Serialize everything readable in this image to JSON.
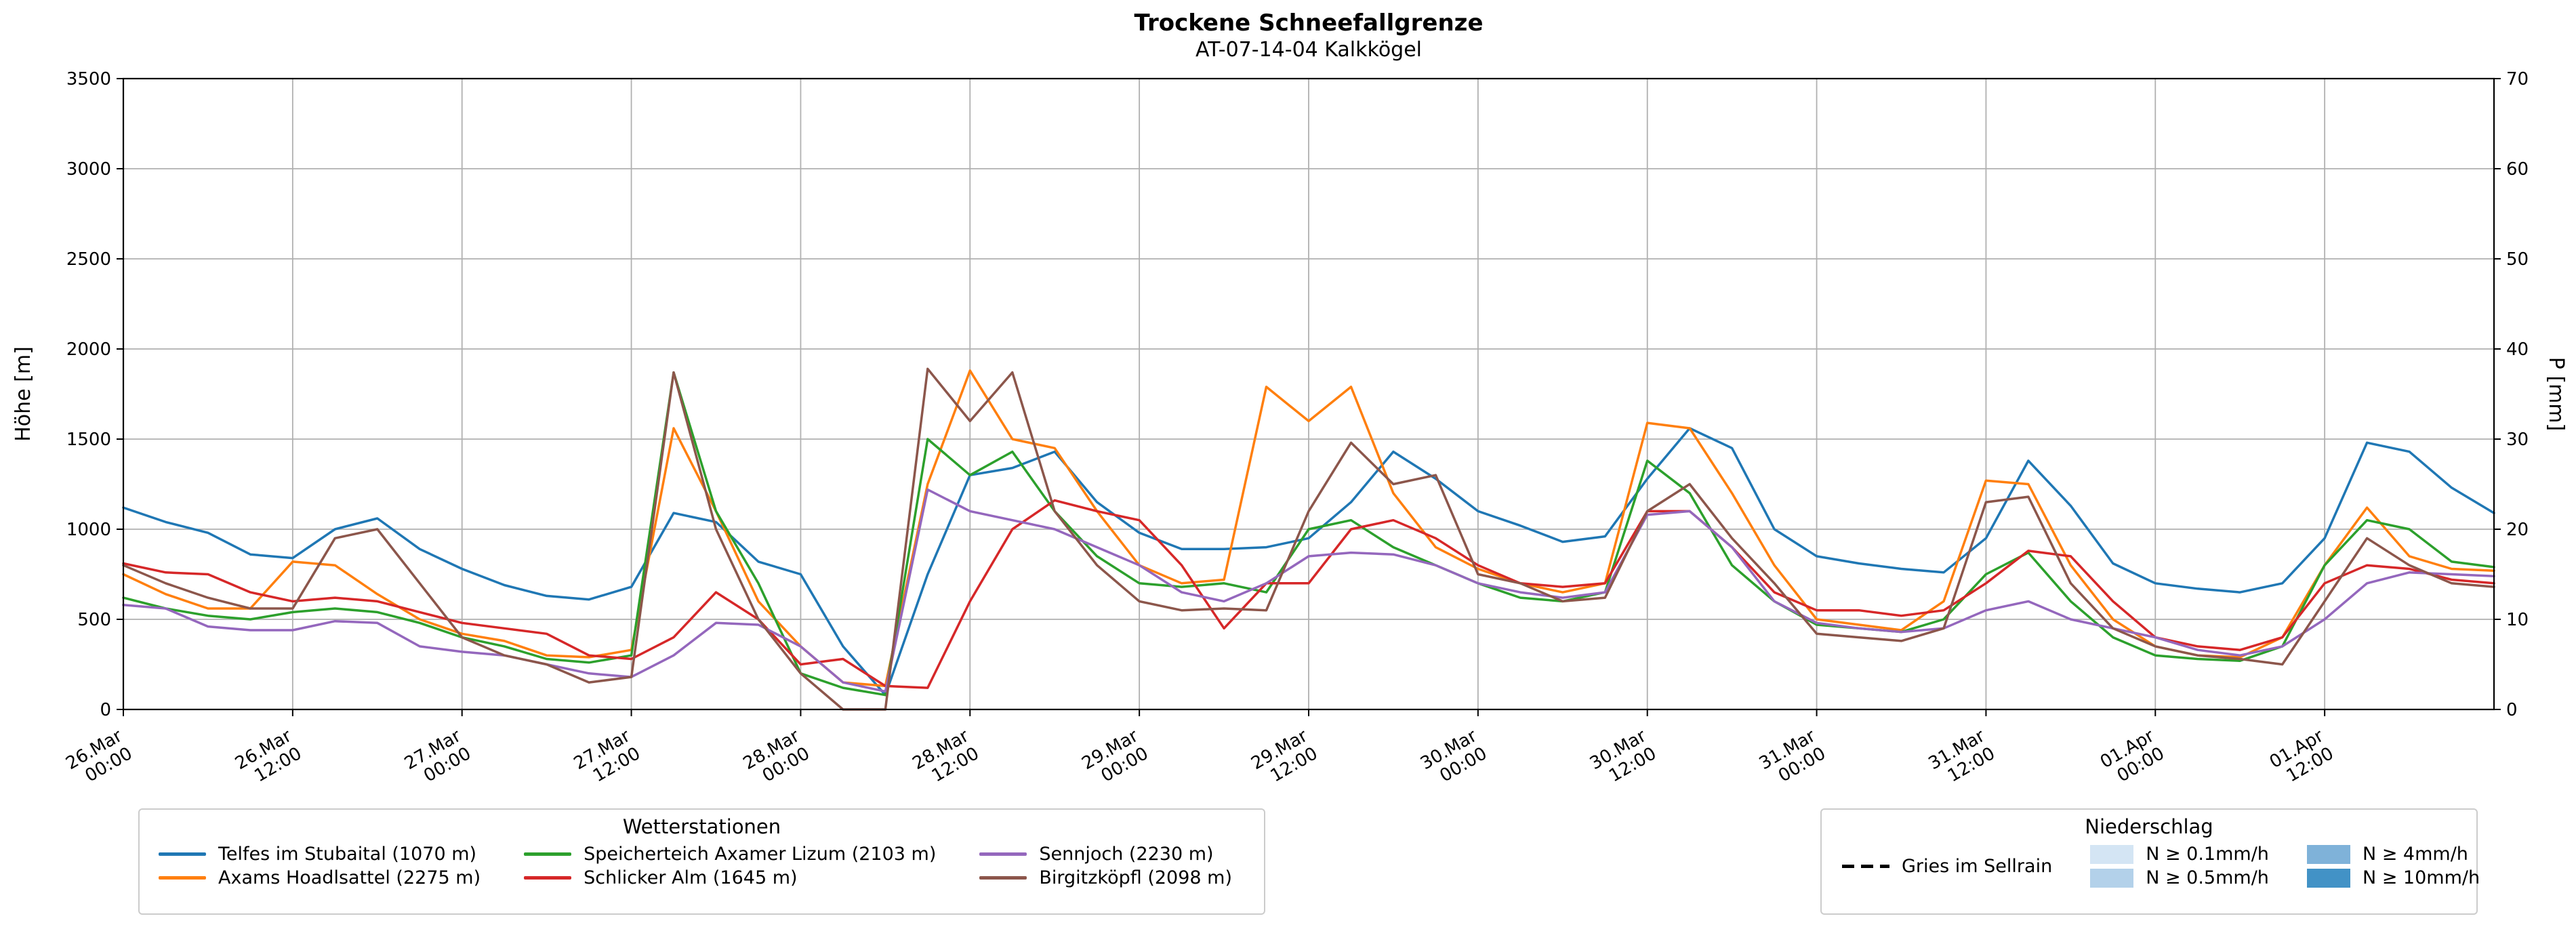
{
  "chart_data": {
    "type": "line",
    "title": "Trockene Schneefallgrenze",
    "subtitle": "AT-07-14-04 Kalkkögel",
    "ylabel_left": "Höhe [m]",
    "ylabel_right": "P [mm]",
    "ylim_left": [
      0,
      3500
    ],
    "ylim_right": [
      0,
      70
    ],
    "yticks_left": [
      0,
      500,
      1000,
      1500,
      2000,
      2500,
      3000,
      3500
    ],
    "yticks_right": [
      0,
      10,
      20,
      30,
      40,
      50,
      60,
      70
    ],
    "grid": true,
    "legend_position": "below",
    "xtick_rotation": 30,
    "x_hours": [
      0,
      3,
      6,
      9,
      12,
      15,
      18,
      21,
      24,
      27,
      30,
      33,
      36,
      39,
      42,
      45,
      48,
      51,
      54,
      57,
      60,
      63,
      66,
      69,
      72,
      75,
      78,
      81,
      84,
      87,
      90,
      93,
      96,
      99,
      102,
      105,
      108,
      111,
      114,
      117,
      120,
      123,
      126,
      129,
      132,
      135,
      138,
      141,
      144,
      147,
      150,
      153,
      156,
      159,
      162,
      165,
      168
    ],
    "x_ticks": [
      {
        "hour": 0,
        "date": "26.Mar",
        "time": "00:00"
      },
      {
        "hour": 12,
        "date": "26.Mar",
        "time": "12:00"
      },
      {
        "hour": 24,
        "date": "27.Mar",
        "time": "00:00"
      },
      {
        "hour": 36,
        "date": "27.Mar",
        "time": "12:00"
      },
      {
        "hour": 48,
        "date": "28.Mar",
        "time": "00:00"
      },
      {
        "hour": 60,
        "date": "28.Mar",
        "time": "12:00"
      },
      {
        "hour": 72,
        "date": "29.Mar",
        "time": "00:00"
      },
      {
        "hour": 84,
        "date": "29.Mar",
        "time": "12:00"
      },
      {
        "hour": 96,
        "date": "30.Mar",
        "time": "00:00"
      },
      {
        "hour": 108,
        "date": "30.Mar",
        "time": "12:00"
      },
      {
        "hour": 120,
        "date": "31.Mar",
        "time": "00:00"
      },
      {
        "hour": 132,
        "date": "31.Mar",
        "time": "12:00"
      },
      {
        "hour": 144,
        "date": "01.Apr",
        "time": "00:00"
      },
      {
        "hour": 156,
        "date": "01.Apr",
        "time": "12:00"
      }
    ],
    "series": [
      {
        "name": "Telfes im Stubaital (1070 m)",
        "color": "#1f77b4",
        "values": [
          1120,
          1040,
          980,
          860,
          840,
          1000,
          1060,
          890,
          780,
          690,
          630,
          610,
          680,
          1090,
          1040,
          820,
          750,
          350,
          80,
          750,
          1300,
          1340,
          1430,
          1150,
          980,
          890,
          890,
          900,
          950,
          1150,
          1430,
          1280,
          1100,
          1020,
          930,
          960,
          1280,
          1560,
          1450,
          1000,
          850,
          810,
          780,
          760,
          950,
          1380,
          1130,
          810,
          700,
          670,
          650,
          700,
          950,
          1480,
          1430,
          1230,
          1090
        ]
      },
      {
        "name": "Axams Hoadlsattel (2275 m)",
        "color": "#ff7f0e",
        "values": [
          750,
          640,
          560,
          560,
          820,
          800,
          640,
          500,
          420,
          380,
          300,
          290,
          330,
          1560,
          1100,
          600,
          350,
          150,
          130,
          1250,
          1880,
          1500,
          1450,
          1100,
          800,
          700,
          720,
          1790,
          1600,
          1790,
          1200,
          900,
          780,
          700,
          650,
          700,
          1590,
          1560,
          1200,
          800,
          500,
          470,
          440,
          600,
          1270,
          1250,
          800,
          500,
          350,
          300,
          290,
          400,
          800,
          1120,
          850,
          780,
          770
        ]
      },
      {
        "name": "Speicherteich Axamer Lizum (2103 m)",
        "color": "#2ca02c",
        "values": [
          620,
          560,
          520,
          500,
          540,
          560,
          540,
          480,
          400,
          350,
          280,
          260,
          300,
          1870,
          1100,
          700,
          200,
          120,
          80,
          1500,
          1300,
          1430,
          1100,
          850,
          700,
          680,
          700,
          650,
          1000,
          1050,
          900,
          800,
          700,
          620,
          600,
          650,
          1380,
          1200,
          800,
          600,
          470,
          450,
          430,
          500,
          750,
          870,
          600,
          400,
          300,
          280,
          270,
          350,
          800,
          1050,
          1000,
          820,
          790
        ]
      },
      {
        "name": "Schlicker Alm (1645 m)",
        "color": "#d62728",
        "values": [
          810,
          760,
          750,
          650,
          600,
          620,
          600,
          540,
          480,
          450,
          420,
          300,
          280,
          400,
          650,
          500,
          250,
          280,
          130,
          120,
          600,
          1000,
          1160,
          1100,
          1050,
          800,
          450,
          700,
          700,
          1000,
          1050,
          950,
          800,
          700,
          680,
          700,
          1100,
          1100,
          900,
          650,
          550,
          550,
          520,
          550,
          700,
          880,
          850,
          600,
          400,
          350,
          330,
          400,
          700,
          800,
          780,
          720,
          700
        ]
      },
      {
        "name": "Sennjoch (2230 m)",
        "color": "#9467bd",
        "values": [
          580,
          560,
          460,
          440,
          440,
          490,
          480,
          350,
          320,
          300,
          250,
          200,
          180,
          300,
          480,
          470,
          350,
          150,
          100,
          1220,
          1100,
          1050,
          1000,
          900,
          800,
          650,
          600,
          700,
          850,
          870,
          860,
          800,
          700,
          650,
          620,
          650,
          1080,
          1100,
          900,
          600,
          480,
          450,
          430,
          450,
          550,
          600,
          500,
          450,
          400,
          330,
          300,
          350,
          500,
          700,
          760,
          750,
          740
        ]
      },
      {
        "name": "Birgitzköpfl (2098 m)",
        "color": "#8c564b",
        "values": [
          800,
          700,
          620,
          560,
          560,
          950,
          1000,
          700,
          400,
          300,
          250,
          150,
          180,
          1870,
          1000,
          500,
          200,
          0,
          0,
          1890,
          1600,
          1870,
          1100,
          800,
          600,
          550,
          560,
          550,
          1100,
          1480,
          1250,
          1300,
          750,
          700,
          600,
          620,
          1100,
          1250,
          950,
          700,
          420,
          400,
          380,
          450,
          1150,
          1180,
          700,
          450,
          350,
          300,
          280,
          250,
          600,
          950,
          800,
          700,
          680
        ]
      }
    ],
    "legend_stations": {
      "title": "Wetterstationen"
    },
    "legend_precip": {
      "title": "Niederschlag",
      "line_item": {
        "label": "Gries im Sellrain",
        "color": "#000000",
        "style": "dashed"
      },
      "patch_items": [
        {
          "label": "N ≥ 0.1mm/h",
          "color": "#d4e5f4"
        },
        {
          "label": "N ≥ 0.5mm/h",
          "color": "#b3d1ea"
        },
        {
          "label": "N ≥ 4mm/h",
          "color": "#7fb2d9"
        },
        {
          "label": "N ≥ 10mm/h",
          "color": "#4292c6"
        }
      ]
    }
  }
}
